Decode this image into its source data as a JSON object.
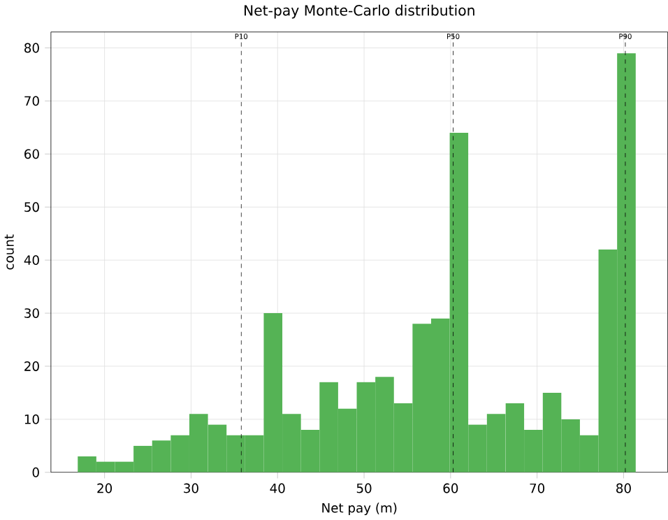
{
  "chart_data": {
    "type": "histogram",
    "title": "Net-pay Monte-Carlo distribution",
    "xlabel": "Net pay (m)",
    "ylabel": "count",
    "bins": [
      16.9,
      19.05,
      21.2,
      23.35,
      25.5,
      27.65,
      29.8,
      31.95,
      34.1,
      36.25,
      38.4,
      40.55,
      42.7,
      44.85,
      47.0,
      49.15,
      51.3,
      53.45,
      55.6,
      57.75,
      59.9,
      62.05,
      64.2,
      66.35,
      68.5,
      70.65,
      72.8,
      74.95,
      77.1,
      79.25,
      81.4
    ],
    "values": [
      3,
      2,
      2,
      5,
      6,
      7,
      11,
      9,
      7,
      7,
      30,
      11,
      8,
      17,
      12,
      17,
      18,
      13,
      28,
      29,
      64,
      9,
      11,
      13,
      8,
      15,
      10,
      7,
      42,
      79
    ],
    "color": "#55b355",
    "xlim": [
      13.8,
      85.1
    ],
    "ylim": [
      0,
      83
    ],
    "xticks": [
      20,
      30,
      40,
      50,
      60,
      70,
      80
    ],
    "yticks": [
      0,
      10,
      20,
      30,
      40,
      50,
      60,
      70,
      80
    ],
    "grid": true,
    "ref_lines": [
      {
        "axis": "x",
        "value": 35.8,
        "label": "P10",
        "color": "#000000",
        "line_style": "dashed"
      },
      {
        "axis": "x",
        "value": 60.3,
        "label": "P50",
        "color": "#000000",
        "line_style": "dashed"
      },
      {
        "axis": "x",
        "value": 80.2,
        "label": "P90",
        "color": "#000000",
        "line_style": "dashed"
      }
    ]
  }
}
